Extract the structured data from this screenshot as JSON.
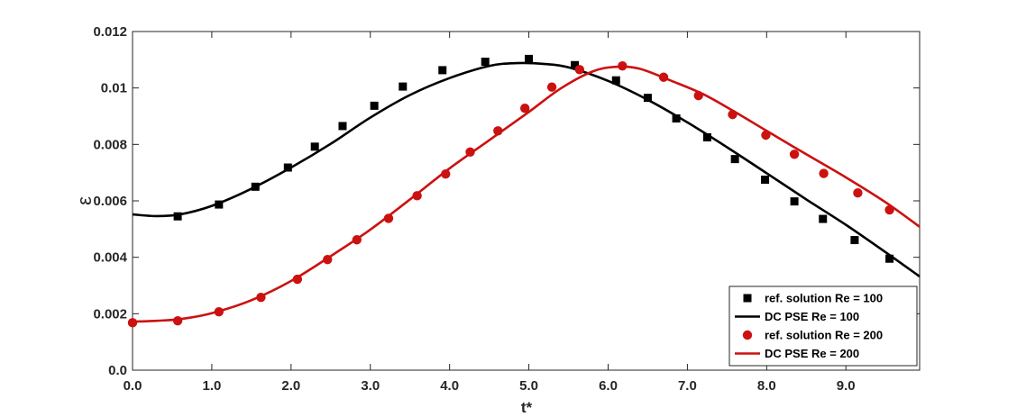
{
  "chart_data": {
    "type": "line",
    "xlabel": "t*",
    "ylabel": "ε",
    "xlim": [
      0,
      9.93
    ],
    "ylim": [
      0,
      0.012
    ],
    "xticks": [
      0,
      1,
      2,
      3,
      4,
      5,
      6,
      7,
      8,
      9
    ],
    "xtick_labels": [
      "0.0",
      "1.0",
      "2.0",
      "3.0",
      "4.0",
      "5.0",
      "6.0",
      "7.0",
      "8.0",
      "9.0"
    ],
    "yticks": [
      0,
      0.002,
      0.004,
      0.006,
      0.008,
      0.01,
      0.012
    ],
    "ytick_labels": [
      "0.0",
      "0.002",
      "0.004",
      "0.006",
      "0.008",
      "0.01",
      "0.012"
    ],
    "grid": false,
    "legend_position": "bottom-right",
    "series": [
      {
        "name": "ref. solution Re = 100",
        "style": "marker",
        "marker": "square",
        "color": "#000000",
        "x": [
          0.57,
          1.09,
          1.55,
          1.96,
          2.3,
          2.65,
          3.05,
          3.41,
          3.91,
          4.45,
          5.0,
          5.58,
          6.1,
          6.5,
          6.86,
          7.25,
          7.6,
          7.98,
          8.35,
          8.71,
          9.11,
          9.55
        ],
        "y": [
          0.00545,
          0.00587,
          0.0065,
          0.00718,
          0.00792,
          0.00865,
          0.00937,
          0.01005,
          0.01063,
          0.01093,
          0.01103,
          0.01081,
          0.01027,
          0.00965,
          0.00892,
          0.00825,
          0.00748,
          0.00675,
          0.00598,
          0.00536,
          0.00461,
          0.00395
        ]
      },
      {
        "name": "DC PSE Re = 100",
        "style": "line",
        "color": "#000000",
        "x": [
          0.0,
          0.3,
          0.6,
          1.0,
          1.5,
          2.0,
          2.5,
          3.0,
          3.5,
          4.0,
          4.5,
          4.85,
          5.2,
          5.5,
          6.0,
          6.5,
          7.0,
          7.5,
          8.0,
          8.5,
          9.0,
          9.5,
          9.93
        ],
        "y": [
          0.00552,
          0.00546,
          0.00552,
          0.00582,
          0.00643,
          0.00718,
          0.00802,
          0.00895,
          0.00975,
          0.01035,
          0.01078,
          0.01088,
          0.01085,
          0.01073,
          0.01025,
          0.00958,
          0.00878,
          0.0079,
          0.00698,
          0.00605,
          0.00515,
          0.00418,
          0.00332
        ]
      },
      {
        "name": "ref. solution Re = 200",
        "style": "marker",
        "marker": "circle",
        "color": "#cc1111",
        "x": [
          0.0,
          0.57,
          1.09,
          1.62,
          2.08,
          2.46,
          2.83,
          3.23,
          3.59,
          3.95,
          4.26,
          4.61,
          4.95,
          5.29,
          5.64,
          6.18,
          6.7,
          7.14,
          7.57,
          7.99,
          8.35,
          8.72,
          9.15,
          9.55
        ],
        "y": [
          0.00168,
          0.00175,
          0.00207,
          0.00258,
          0.00322,
          0.00392,
          0.00462,
          0.00538,
          0.00618,
          0.00695,
          0.00773,
          0.00848,
          0.00928,
          0.01003,
          0.01065,
          0.01078,
          0.01038,
          0.00973,
          0.00906,
          0.00833,
          0.00765,
          0.00697,
          0.00628,
          0.00568
        ]
      },
      {
        "name": "DC PSE Re = 200",
        "style": "line",
        "color": "#cc1111",
        "x": [
          0.0,
          0.3,
          0.6,
          1.0,
          1.5,
          2.0,
          2.5,
          3.0,
          3.5,
          4.0,
          4.5,
          5.0,
          5.4,
          5.8,
          6.1,
          6.4,
          6.8,
          7.2,
          7.6,
          8.0,
          8.5,
          9.0,
          9.5,
          9.93
        ],
        "y": [
          0.00172,
          0.00175,
          0.00181,
          0.00202,
          0.00248,
          0.00316,
          0.00404,
          0.00498,
          0.00605,
          0.00715,
          0.00815,
          0.00915,
          0.00998,
          0.01058,
          0.01075,
          0.01068,
          0.01025,
          0.00978,
          0.00915,
          0.00848,
          0.00765,
          0.00683,
          0.00595,
          0.00508
        ]
      }
    ]
  }
}
